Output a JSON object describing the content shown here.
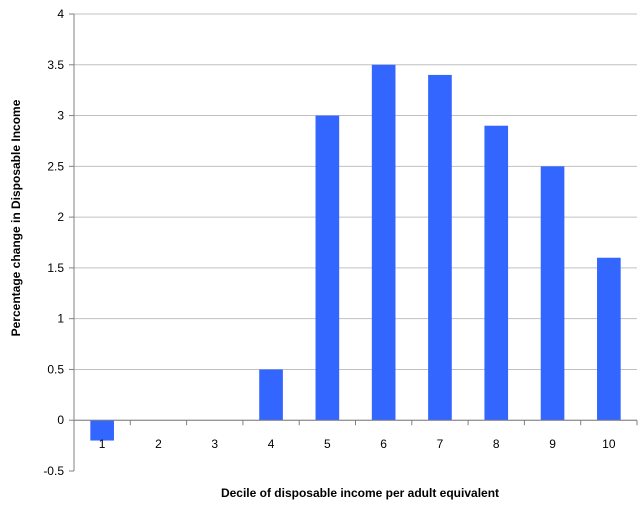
{
  "chart_data": {
    "type": "bar",
    "categories": [
      "1",
      "2",
      "3",
      "4",
      "5",
      "6",
      "7",
      "8",
      "9",
      "10"
    ],
    "values": [
      -0.2,
      0,
      0,
      0.5,
      3.0,
      3.5,
      3.4,
      2.9,
      2.5,
      1.6
    ],
    "title": "",
    "xlabel": "Decile of disposable income per adult equivalent",
    "ylabel": "Percentage change in Disposable Income",
    "ylim": [
      -0.5,
      4
    ],
    "yticks": [
      -0.5,
      0,
      0.5,
      1,
      1.5,
      2,
      2.5,
      3,
      3.5,
      4
    ],
    "ytick_labels": [
      "-0.5",
      "0",
      "0.5",
      "1",
      "1.5",
      "2",
      "2.5",
      "3",
      "3.5",
      "4"
    ],
    "grid": true,
    "legend": "none",
    "bar_color": "#3366FF",
    "grid_color": "#C0C0C0",
    "axis_color": "#808080"
  }
}
